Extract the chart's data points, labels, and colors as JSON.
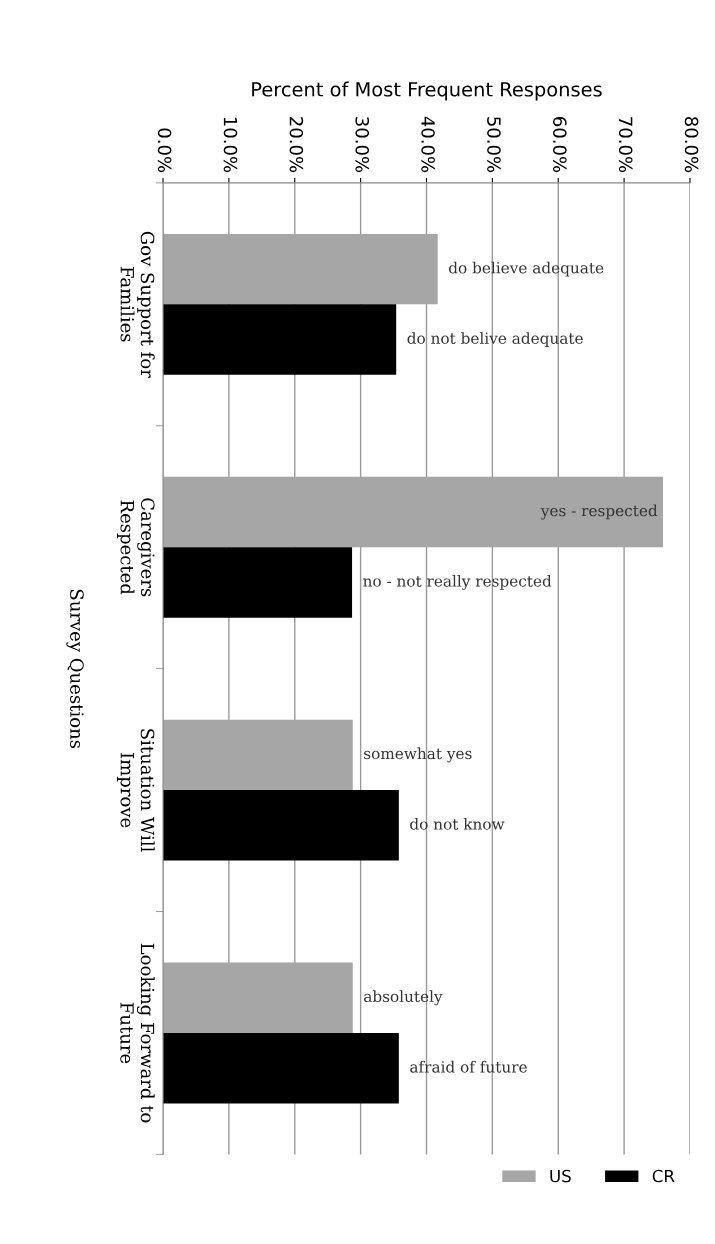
{
  "chart_data": {
    "type": "bar",
    "orientation": "horizontal",
    "xlabel": "Percent of Most Frequent Responses",
    "ylabel": "Survey Questions",
    "categories": [
      "Gov Support for\nFamilies",
      "Caregivers\nRespected",
      "Situation Will\nImprove",
      "Looking Forward to\nFuture"
    ],
    "series": [
      {
        "name": "US",
        "color": "#a6a6a6",
        "values": [
          41.7,
          75.9,
          28.8,
          28.8
        ],
        "value_labels": [
          "do believe adequate",
          "yes - respected",
          "somewhat yes",
          "absolutely"
        ]
      },
      {
        "name": "CR",
        "color": "#000000",
        "values": [
          35.4,
          28.7,
          35.8,
          35.8
        ],
        "value_labels": [
          "do not belive adequate",
          "no - not really respected",
          "do not know",
          "afraid of future"
        ]
      }
    ],
    "xlim": [
      0,
      80
    ],
    "xticks": [
      {
        "value": 0,
        "label": "0.0%"
      },
      {
        "value": 10,
        "label": "10.0%"
      },
      {
        "value": 20,
        "label": "20.0%"
      },
      {
        "value": 30,
        "label": "30.0%"
      },
      {
        "value": 40,
        "label": "40.0%"
      },
      {
        "value": 50,
        "label": "50.0%"
      },
      {
        "value": 60,
        "label": "60.0%"
      },
      {
        "value": 70,
        "label": "70.0%"
      },
      {
        "value": 80,
        "label": "80.0%"
      }
    ],
    "grid": "x",
    "legend": "bottom right"
  }
}
